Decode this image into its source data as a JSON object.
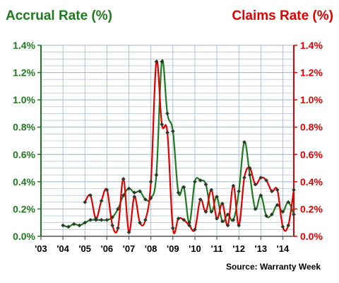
{
  "chart_data": {
    "type": "line",
    "left_title": "Accrual Rate (%)",
    "right_title": "Claims Rate (%)",
    "source": "Source: Warranty Week",
    "colors": {
      "left": "#1f7a1f",
      "right": "#e00000",
      "grid": "#9fb4c8"
    },
    "x_ticks": [
      "'03",
      "'04",
      "'05",
      "'06",
      "'07",
      "'08",
      "'09",
      "'10",
      "'11",
      "'12",
      "'13",
      "'14"
    ],
    "xlim": [
      2003,
      2014.5
    ],
    "y_ticks": [
      "0.0%",
      "0.2%",
      "0.4%",
      "0.6%",
      "0.8%",
      "1.0%",
      "1.2%",
      "1.4%"
    ],
    "ylim": [
      0,
      1.4
    ],
    "series": [
      {
        "role": "accrual",
        "color": "#1f7a1f",
        "x": [
          2004.0,
          2004.25,
          2004.5,
          2004.75,
          2005.0,
          2005.25,
          2005.5,
          2005.75,
          2006.0,
          2006.25,
          2006.5,
          2006.75,
          2007.0,
          2007.25,
          2007.5,
          2007.75,
          2008.0,
          2008.25,
          2008.5,
          2008.75,
          2009.0,
          2009.25,
          2009.5,
          2009.75,
          2010.0,
          2010.25,
          2010.5,
          2010.75,
          2011.0,
          2011.25,
          2011.5,
          2011.75,
          2012.0,
          2012.25,
          2012.5,
          2012.75,
          2013.0,
          2013.25,
          2013.5,
          2013.75,
          2014.0,
          2014.25,
          2014.5
        ],
        "values": [
          0.08,
          0.07,
          0.09,
          0.08,
          0.1,
          0.12,
          0.12,
          0.12,
          0.12,
          0.14,
          0.2,
          0.3,
          0.35,
          0.32,
          0.33,
          0.27,
          0.28,
          0.45,
          1.28,
          0.9,
          0.77,
          0.32,
          0.36,
          0.1,
          0.4,
          0.41,
          0.38,
          0.18,
          0.29,
          0.11,
          0.16,
          0.12,
          0.33,
          0.69,
          0.45,
          0.2,
          0.3,
          0.15,
          0.16,
          0.23,
          0.18,
          0.25,
          0.16
        ]
      },
      {
        "role": "claims",
        "color": "#e00000",
        "x": [
          2005.0,
          2005.25,
          2005.5,
          2005.75,
          2006.0,
          2006.25,
          2006.5,
          2006.75,
          2007.0,
          2007.25,
          2007.5,
          2007.75,
          2008.0,
          2008.25,
          2008.5,
          2008.75,
          2009.0,
          2009.25,
          2009.5,
          2009.75,
          2010.0,
          2010.25,
          2010.5,
          2010.75,
          2011.0,
          2011.25,
          2011.5,
          2011.75,
          2012.0,
          2012.25,
          2012.5,
          2012.75,
          2013.0,
          2013.25,
          2013.5,
          2013.75,
          2014.0,
          2014.25,
          2014.5
        ],
        "values": [
          0.25,
          0.3,
          0.13,
          0.26,
          0.34,
          0.08,
          0.06,
          0.42,
          0.03,
          0.29,
          0.1,
          0.12,
          0.4,
          1.28,
          0.82,
          0.76,
          0.06,
          0.13,
          0.12,
          0.08,
          0.05,
          0.27,
          0.18,
          0.34,
          0.13,
          0.24,
          0.08,
          0.37,
          0.08,
          0.43,
          0.5,
          0.38,
          0.43,
          0.41,
          0.33,
          0.34,
          0.07,
          0.08,
          0.34
        ]
      }
    ]
  }
}
